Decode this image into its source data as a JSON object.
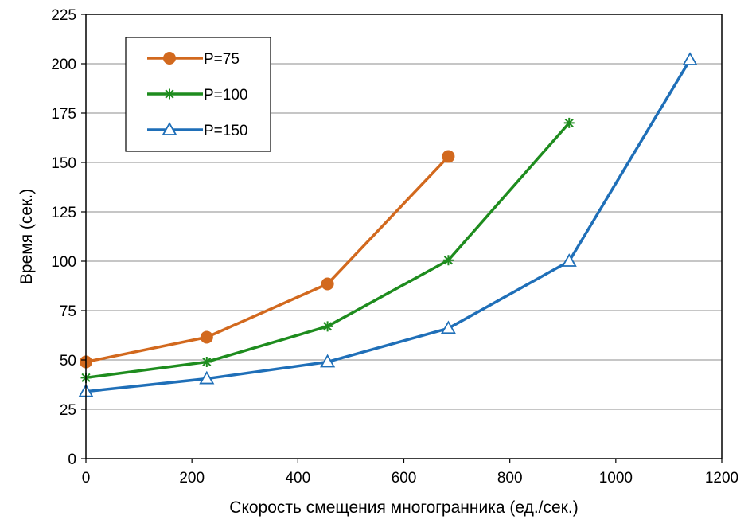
{
  "chart_data": {
    "type": "line",
    "title": "",
    "xlabel": "Скорость смещения многогранника (ед./сек.)",
    "ylabel": "Время (сек.)",
    "xlim": [
      0,
      1200
    ],
    "ylim": [
      0,
      225
    ],
    "xticks": [
      "0",
      "200",
      "400",
      "600",
      "800",
      "1000",
      "1200"
    ],
    "yticks": [
      "0",
      "25",
      "50",
      "75",
      "100",
      "125",
      "150",
      "175",
      "200",
      "225"
    ],
    "grid": "horizontal",
    "legend_position": "top-left",
    "series": [
      {
        "name": "P=75",
        "color": "#D2691E",
        "marker": "circle",
        "x": [
          0,
          228,
          456,
          684
        ],
        "y": [
          49,
          61.5,
          88.5,
          153
        ]
      },
      {
        "name": "P=100",
        "color": "#1E8C1E",
        "marker": "star",
        "x": [
          0,
          228,
          456,
          684,
          912
        ],
        "y": [
          41,
          49,
          67,
          100.5,
          170
        ]
      },
      {
        "name": "P=150",
        "color": "#1F6FB8",
        "marker": "triangle",
        "x": [
          0,
          228,
          456,
          684,
          912,
          1140
        ],
        "y": [
          34,
          40.5,
          49,
          66,
          100,
          202
        ]
      }
    ]
  }
}
